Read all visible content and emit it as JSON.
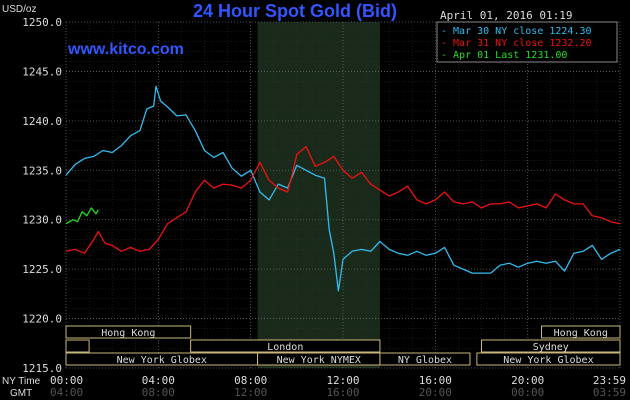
{
  "chart_data": {
    "type": "line",
    "title": "24 Hour Spot Gold (Bid)",
    "watermark": "www.kitco.com",
    "date_label": "April 01, 2016 01:19",
    "y_axis_label": "USD/oz",
    "ylim": [
      1215.0,
      1250.0
    ],
    "y_ticks": [
      "1250.0",
      "1245.0",
      "1240.0",
      "1235.0",
      "1230.0",
      "1225.0",
      "1220.0",
      "1215.0"
    ],
    "x_row_labels": {
      "ny": "NY Time",
      "gmt": "GMT"
    },
    "x_ticks_ny": [
      "00:00",
      "04:00",
      "08:00",
      "12:00",
      "16:00",
      "20:00",
      "23:59"
    ],
    "x_ticks_gmt": [
      "04:00",
      "08:00",
      "12:00",
      "16:00",
      "20:00",
      "00:00",
      "03:59"
    ],
    "xlim_hours": [
      0,
      24
    ],
    "shaded_region_hours": [
      8.3,
      13.6
    ],
    "legend": [
      {
        "label": "Mar 30 NY close 1224.30",
        "color": "#33bbee"
      },
      {
        "label": "Mar 31 NY close 1232.20",
        "color": "#ee1111"
      },
      {
        "label": "Apr 01 Last 1231.00",
        "color": "#22dd22"
      }
    ],
    "series": [
      {
        "color": "#33bbee",
        "points": [
          [
            0.0,
            1234.5
          ],
          [
            0.4,
            1235.6
          ],
          [
            0.8,
            1236.2
          ],
          [
            1.2,
            1236.4
          ],
          [
            1.6,
            1237.0
          ],
          [
            2.0,
            1236.8
          ],
          [
            2.4,
            1237.5
          ],
          [
            2.8,
            1238.5
          ],
          [
            3.2,
            1239.0
          ],
          [
            3.5,
            1241.2
          ],
          [
            3.8,
            1241.5
          ],
          [
            3.9,
            1243.5
          ],
          [
            4.1,
            1242.0
          ],
          [
            4.4,
            1241.4
          ],
          [
            4.8,
            1240.5
          ],
          [
            5.2,
            1240.6
          ],
          [
            5.6,
            1239.0
          ],
          [
            6.0,
            1237.0
          ],
          [
            6.4,
            1236.3
          ],
          [
            6.8,
            1236.8
          ],
          [
            7.2,
            1235.2
          ],
          [
            7.6,
            1234.4
          ],
          [
            8.0,
            1235.0
          ],
          [
            8.4,
            1232.8
          ],
          [
            8.8,
            1232.0
          ],
          [
            9.2,
            1233.6
          ],
          [
            9.6,
            1233.2
          ],
          [
            10.0,
            1235.5
          ],
          [
            10.4,
            1235.0
          ],
          [
            10.8,
            1234.5
          ],
          [
            11.2,
            1234.2
          ],
          [
            11.4,
            1229.0
          ],
          [
            11.6,
            1226.6
          ],
          [
            11.8,
            1222.8
          ],
          [
            12.0,
            1226.0
          ],
          [
            12.4,
            1226.8
          ],
          [
            12.8,
            1227.0
          ],
          [
            13.2,
            1226.8
          ],
          [
            13.6,
            1227.8
          ],
          [
            14.0,
            1227.0
          ],
          [
            14.4,
            1226.6
          ],
          [
            14.8,
            1226.4
          ],
          [
            15.2,
            1226.8
          ],
          [
            15.6,
            1226.4
          ],
          [
            16.0,
            1226.6
          ],
          [
            16.4,
            1227.2
          ],
          [
            16.8,
            1225.4
          ],
          [
            17.2,
            1225.0
          ],
          [
            17.6,
            1224.6
          ],
          [
            18.0,
            1224.6
          ],
          [
            18.4,
            1224.6
          ],
          [
            18.8,
            1225.4
          ],
          [
            19.2,
            1225.6
          ],
          [
            19.6,
            1225.2
          ],
          [
            20.0,
            1225.6
          ],
          [
            20.4,
            1225.8
          ],
          [
            20.8,
            1225.6
          ],
          [
            21.2,
            1225.8
          ],
          [
            21.6,
            1224.8
          ],
          [
            22.0,
            1226.6
          ],
          [
            22.4,
            1226.8
          ],
          [
            22.8,
            1227.4
          ],
          [
            23.2,
            1226.0
          ],
          [
            23.6,
            1226.6
          ],
          [
            24.0,
            1227.0
          ]
        ]
      },
      {
        "color": "#ee1111",
        "points": [
          [
            0.0,
            1226.8
          ],
          [
            0.4,
            1227.0
          ],
          [
            0.8,
            1226.6
          ],
          [
            1.2,
            1228.0
          ],
          [
            1.4,
            1228.8
          ],
          [
            1.7,
            1227.6
          ],
          [
            2.0,
            1227.4
          ],
          [
            2.4,
            1226.8
          ],
          [
            2.8,
            1227.2
          ],
          [
            3.2,
            1226.8
          ],
          [
            3.6,
            1227.0
          ],
          [
            4.0,
            1228.0
          ],
          [
            4.4,
            1229.6
          ],
          [
            4.8,
            1230.2
          ],
          [
            5.2,
            1230.8
          ],
          [
            5.6,
            1232.8
          ],
          [
            6.0,
            1234.0
          ],
          [
            6.4,
            1233.2
          ],
          [
            6.8,
            1233.6
          ],
          [
            7.2,
            1233.5
          ],
          [
            7.6,
            1233.2
          ],
          [
            8.0,
            1234.0
          ],
          [
            8.4,
            1235.8
          ],
          [
            8.8,
            1234.0
          ],
          [
            9.2,
            1233.2
          ],
          [
            9.6,
            1232.8
          ],
          [
            9.8,
            1234.6
          ],
          [
            10.0,
            1236.6
          ],
          [
            10.4,
            1237.4
          ],
          [
            10.8,
            1235.4
          ],
          [
            11.2,
            1235.8
          ],
          [
            11.6,
            1236.4
          ],
          [
            12.0,
            1235.0
          ],
          [
            12.4,
            1234.2
          ],
          [
            12.8,
            1234.8
          ],
          [
            13.2,
            1233.6
          ],
          [
            13.6,
            1233.0
          ],
          [
            14.0,
            1232.4
          ],
          [
            14.4,
            1232.8
          ],
          [
            14.8,
            1233.4
          ],
          [
            15.2,
            1232.0
          ],
          [
            15.6,
            1231.6
          ],
          [
            16.0,
            1232.0
          ],
          [
            16.4,
            1232.8
          ],
          [
            16.8,
            1231.8
          ],
          [
            17.2,
            1231.6
          ],
          [
            17.6,
            1231.8
          ],
          [
            18.0,
            1231.2
          ],
          [
            18.4,
            1231.6
          ],
          [
            18.8,
            1231.6
          ],
          [
            19.2,
            1231.8
          ],
          [
            19.6,
            1231.2
          ],
          [
            20.0,
            1231.4
          ],
          [
            20.4,
            1231.6
          ],
          [
            20.8,
            1231.2
          ],
          [
            21.2,
            1232.6
          ],
          [
            21.6,
            1232.0
          ],
          [
            22.0,
            1231.6
          ],
          [
            22.4,
            1231.6
          ],
          [
            22.8,
            1230.4
          ],
          [
            23.2,
            1230.2
          ],
          [
            23.6,
            1229.8
          ],
          [
            24.0,
            1229.6
          ]
        ]
      },
      {
        "color": "#22dd22",
        "points": [
          [
            0.0,
            1229.6
          ],
          [
            0.3,
            1230.0
          ],
          [
            0.5,
            1229.8
          ],
          [
            0.7,
            1230.8
          ],
          [
            0.9,
            1230.4
          ],
          [
            1.1,
            1231.2
          ],
          [
            1.3,
            1230.6
          ],
          [
            1.4,
            1231.0
          ]
        ]
      }
    ],
    "sessions": [
      {
        "label": "Hong Kong",
        "start": 0.0,
        "end": 5.4,
        "row": 0
      },
      {
        "label": "Hong Kong",
        "start": 20.6,
        "end": 24.0,
        "row": 0
      },
      {
        "label": "London",
        "start": 5.4,
        "end": 13.6,
        "row": 1
      },
      {
        "label": "",
        "start": 0.0,
        "end": 1.0,
        "row": 1
      },
      {
        "label": "Sydney",
        "start": 18.0,
        "end": 24.0,
        "row": 1
      },
      {
        "label": "New York Globex",
        "start": 0.0,
        "end": 8.3,
        "row": 2
      },
      {
        "label": "New York NYMEX",
        "start": 8.3,
        "end": 13.6,
        "row": 2
      },
      {
        "label": "NY Globex",
        "start": 13.6,
        "end": 17.5,
        "row": 2
      },
      {
        "label": "New York Globex",
        "start": 17.8,
        "end": 24.0,
        "row": 2
      }
    ]
  }
}
